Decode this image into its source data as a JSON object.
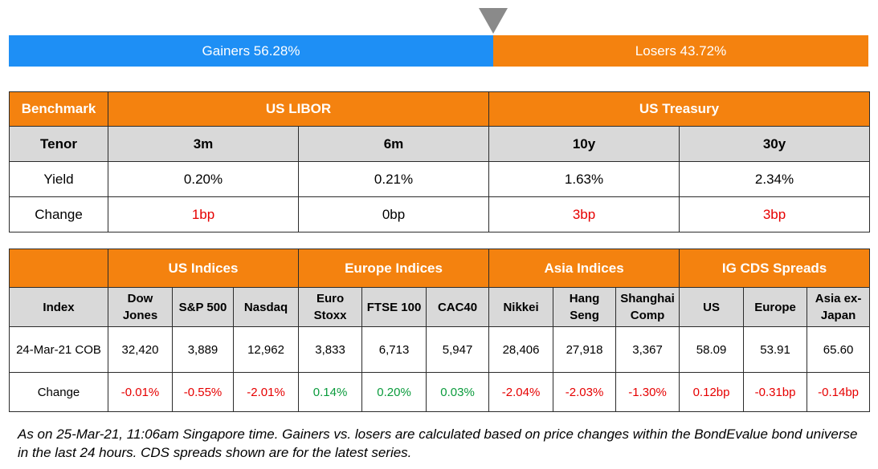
{
  "sentiment": {
    "gainers_label": "Gainers 56.28%",
    "losers_label": "Losers 43.72%",
    "gainers_pct": 56.28,
    "losers_pct": 43.72
  },
  "rates": {
    "benchmark_label": "Benchmark",
    "group_libor": "US LIBOR",
    "group_treasury": "US Treasury",
    "tenor_label": "Tenor",
    "tenors": [
      "3m",
      "6m",
      "10y",
      "30y"
    ],
    "yield_label": "Yield",
    "yields": [
      "0.20%",
      "0.21%",
      "1.63%",
      "2.34%"
    ],
    "change_label": "Change",
    "changes": [
      "1bp",
      "0bp",
      "3bp",
      "3bp"
    ]
  },
  "indices": {
    "groups": [
      "US Indices",
      "Europe Indices",
      "Asia Indices",
      "IG CDS Spreads"
    ],
    "index_label": "Index",
    "columns": [
      [
        "Dow",
        "Jones"
      ],
      [
        "S&P 500"
      ],
      [
        "Nasdaq"
      ],
      [
        "Euro",
        "Stoxx"
      ],
      [
        "FTSE 100"
      ],
      [
        "CAC40"
      ],
      [
        "Nikkei"
      ],
      [
        "Hang",
        "Seng"
      ],
      [
        "Shanghai",
        "Comp"
      ],
      [
        "US"
      ],
      [
        "Europe"
      ],
      [
        "Asia ex-",
        "Japan"
      ]
    ],
    "row_date_label": "24-Mar-21 COB",
    "values": [
      "32,420",
      "3,889",
      "12,962",
      "3,833",
      "6,713",
      "5,947",
      "28,406",
      "27,918",
      "3,367",
      "58.09",
      "53.91",
      "65.60"
    ],
    "change_label": "Change",
    "changes": [
      "-0.01%",
      "-0.55%",
      "-2.01%",
      "0.14%",
      "0.20%",
      "0.03%",
      "-2.04%",
      "-2.03%",
      "-1.30%",
      "0.12bp",
      "-0.31bp",
      "-0.14bp"
    ]
  },
  "colors": {
    "accent": "#f4820f",
    "gainers": "#1e8ff5",
    "header_gray": "#d9d9d9",
    "negative": "#e60000",
    "positive": "#0a9b3c"
  },
  "footnote": "As on 25-Mar-21, 11:06am Singapore time. Gainers vs. losers are calculated based on price changes within the BondEvalue bond universe in the last 24 hours. CDS spreads shown are for the latest series."
}
